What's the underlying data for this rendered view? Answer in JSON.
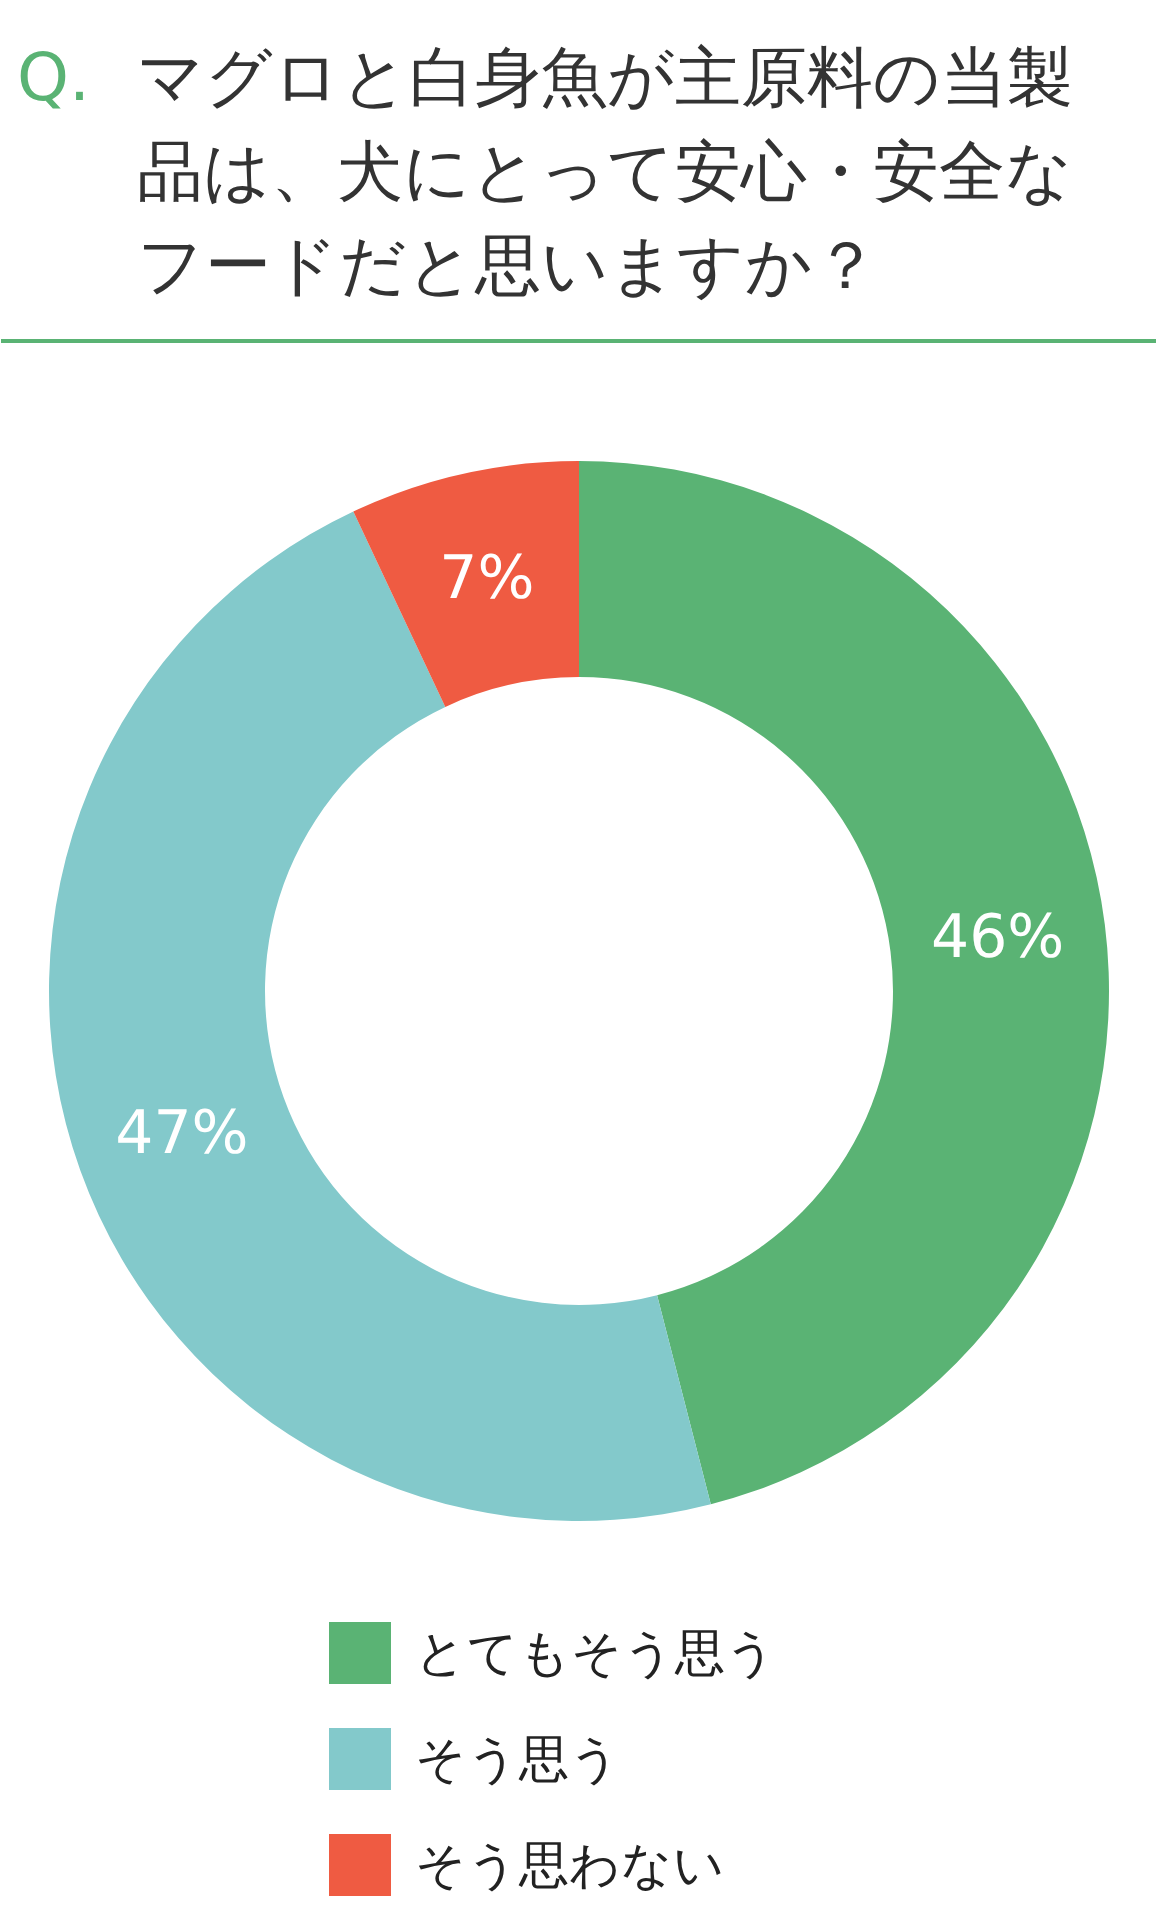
{
  "chart_data": {
    "type": "donut",
    "title": "Q. マグロと白身魚が主原料の当製品は、犬にとって安心・安全なフードだと思いますか？",
    "categories": [
      "とてもそう思う",
      "そう思う",
      "そう思わない"
    ],
    "values": [
      46,
      47,
      7
    ],
    "colors": [
      "#5ab374",
      "#83c9cb",
      "#ef5b42"
    ],
    "value_labels": [
      "46%",
      "47%",
      "7%"
    ],
    "legend": "bottom"
  }
}
